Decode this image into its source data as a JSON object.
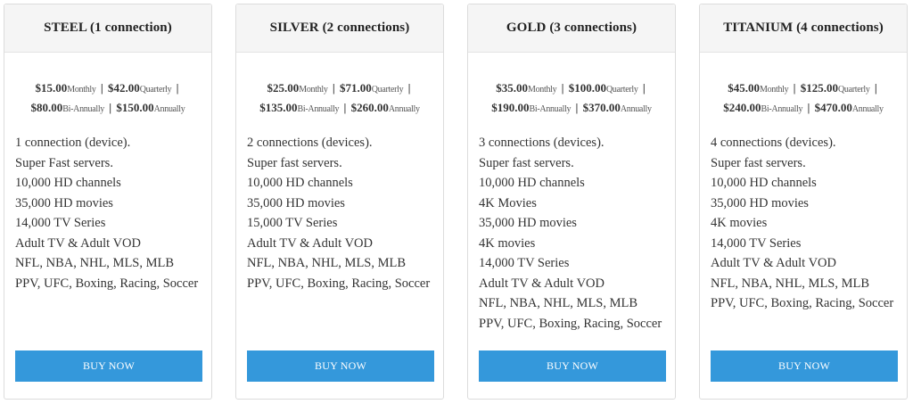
{
  "plans": [
    {
      "title": "STEEL (1 connection)",
      "prices": [
        {
          "amount": "$15.00",
          "period": "Monthly"
        },
        {
          "amount": "$42.00",
          "period": "Quarterly"
        },
        {
          "amount": "$80.00",
          "period": "Bi-Annually"
        },
        {
          "amount": "$150.00",
          "period": "Annually"
        }
      ],
      "features": [
        "1 connection (device).",
        "Super Fast servers.",
        "10,000 HD channels",
        "35,000 HD movies",
        "14,000 TV Series",
        "Adult TV & Adult VOD",
        "NFL, NBA, NHL, MLS, MLB",
        "PPV, UFC, Boxing, Racing, Soccer"
      ],
      "button": "BUY NOW"
    },
    {
      "title": "SILVER (2 connections)",
      "prices": [
        {
          "amount": "$25.00",
          "period": "Monthly"
        },
        {
          "amount": "$71.00",
          "period": "Quarterly"
        },
        {
          "amount": "$135.00",
          "period": "Bi-Annually"
        },
        {
          "amount": "$260.00",
          "period": "Annually"
        }
      ],
      "features": [
        "2 connections (devices).",
        "Super fast servers.",
        "10,000 HD channels",
        "35,000 HD movies",
        "15,000 TV Series",
        "Adult TV & Adult VOD",
        "NFL, NBA, NHL, MLS, MLB",
        "PPV, UFC, Boxing, Racing, Soccer"
      ],
      "button": "BUY NOW"
    },
    {
      "title": "GOLD (3 connections)",
      "prices": [
        {
          "amount": "$35.00",
          "period": "Monthly"
        },
        {
          "amount": "$100.00",
          "period": "Quarterly"
        },
        {
          "amount": "$190.00",
          "period": "Bi-Annually"
        },
        {
          "amount": "$370.00",
          "period": "Annually"
        }
      ],
      "features": [
        "3 connections (devices).",
        "Super fast servers.",
        "10,000 HD channels",
        "4K Movies",
        "35,000 HD movies",
        "4K movies",
        "14,000 TV Series",
        "Adult TV & Adult VOD",
        "NFL, NBA, NHL, MLS, MLB",
        "PPV, UFC, Boxing, Racing, Soccer"
      ],
      "button": "BUY NOW"
    },
    {
      "title": "TITANIUM (4 connections)",
      "prices": [
        {
          "amount": "$45.00",
          "period": "Monthly"
        },
        {
          "amount": "$125.00",
          "period": "Quarterly"
        },
        {
          "amount": "$240.00",
          "period": "Bi-Annually"
        },
        {
          "amount": "$470.00",
          "period": "Annually"
        }
      ],
      "features": [
        "4 connections (devices).",
        "Super fast servers.",
        "10,000 HD channels",
        "35,000 HD movies",
        "4K movies",
        "14,000 TV Series",
        "Adult TV & Adult VOD",
        "NFL, NBA, NHL, MLS, MLB",
        "PPV, UFC, Boxing, Racing, Soccer"
      ],
      "button": "BUY NOW"
    }
  ],
  "colors": {
    "button": "#3498db",
    "header_bg": "#f5f5f5",
    "border": "#dcdcdc"
  }
}
